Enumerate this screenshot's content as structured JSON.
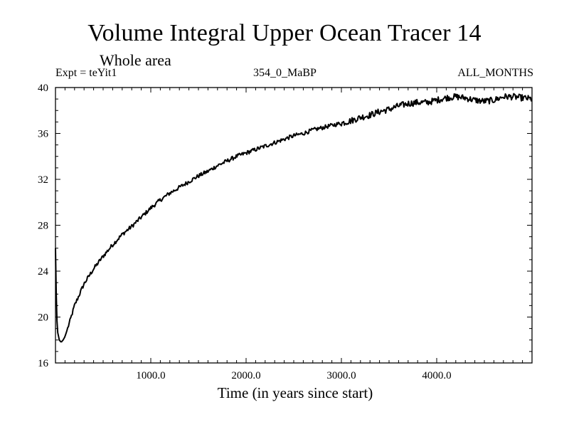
{
  "chart_data": {
    "type": "line",
    "title": "Volume Integral Upper Ocean Tracer 14",
    "subtitle": "Whole area",
    "expt_label": "Expt = teYit1",
    "run_label": "354_0_MaBP",
    "months_label": "ALL_MONTHS",
    "xlabel": "Time (in years since start)",
    "ylabel": "",
    "xlim": [
      0,
      5000
    ],
    "ylim": [
      16,
      40
    ],
    "xticks": [
      1000,
      2000,
      3000,
      4000
    ],
    "xtick_labels": [
      "1000.0",
      "2000.0",
      "3000.0",
      "4000.0"
    ],
    "yticks": [
      16,
      20,
      24,
      28,
      32,
      36,
      40
    ],
    "ytick_labels": [
      "16",
      "20",
      "24",
      "28",
      "32",
      "36",
      "40"
    ],
    "line_color": "#000000",
    "series": [
      {
        "name": "tracer14",
        "x": [
          0,
          10,
          20,
          40,
          60,
          80,
          100,
          150,
          200,
          300,
          400,
          500,
          600,
          700,
          800,
          900,
          1000,
          1100,
          1200,
          1300,
          1400,
          1500,
          1600,
          1700,
          1800,
          1900,
          2000,
          2100,
          2200,
          2300,
          2400,
          2500,
          2600,
          2700,
          2800,
          2900,
          3000,
          3100,
          3200,
          3300,
          3400,
          3500,
          3600,
          3700,
          3800,
          3900,
          4000,
          4100,
          4200,
          4300,
          4400,
          4500,
          4600,
          4700,
          4800,
          4900,
          5000
        ],
        "y": [
          26.0,
          21.0,
          18.8,
          18.0,
          17.8,
          18.0,
          18.3,
          19.6,
          21.0,
          22.9,
          24.2,
          25.3,
          26.3,
          27.2,
          27.9,
          28.7,
          29.5,
          30.2,
          30.8,
          31.3,
          31.8,
          32.3,
          32.7,
          33.2,
          33.6,
          34.0,
          34.3,
          34.6,
          34.9,
          35.2,
          35.5,
          35.8,
          36.0,
          36.3,
          36.5,
          36.7,
          36.9,
          37.1,
          37.4,
          37.6,
          37.9,
          38.1,
          38.4,
          38.6,
          38.7,
          38.7,
          38.9,
          39.1,
          39.2,
          39.1,
          38.9,
          38.8,
          38.9,
          39.2,
          39.2,
          39.1,
          39.0
        ]
      }
    ]
  }
}
